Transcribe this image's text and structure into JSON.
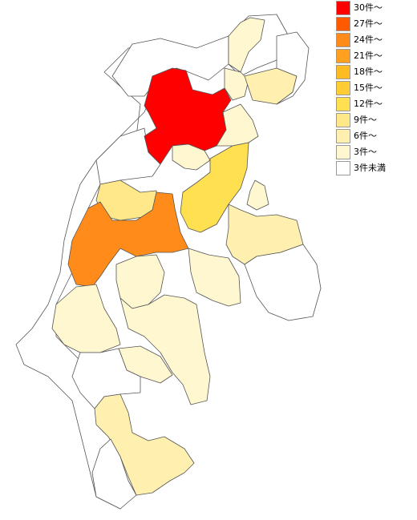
{
  "legend": {
    "items": [
      {
        "label": "30件～",
        "color": "#ff0000"
      },
      {
        "label": "27件～",
        "color": "#ff5a00"
      },
      {
        "label": "24件～",
        "color": "#ff8c1a"
      },
      {
        "label": "21件～",
        "color": "#ffa01e"
      },
      {
        "label": "18件～",
        "color": "#ffbb22"
      },
      {
        "label": "15件～",
        "color": "#ffcc33"
      },
      {
        "label": "12件～",
        "color": "#ffe050"
      },
      {
        "label": "9件～",
        "color": "#ffe88a"
      },
      {
        "label": "6件～",
        "color": "#fff0b0"
      },
      {
        "label": "3件～",
        "color": "#fff7d0"
      },
      {
        "label": "3件未満",
        "color": "#ffffff"
      }
    ]
  },
  "map": {
    "regions": [
      {
        "name": "north-east-1",
        "level": "3件～"
      },
      {
        "name": "north-east-2",
        "level": "6件～"
      },
      {
        "name": "north-east-3",
        "level": "3件～"
      },
      {
        "name": "north-central-top",
        "level": "3件未満"
      },
      {
        "name": "north-west-top",
        "level": "3件未満"
      },
      {
        "name": "nagano-city",
        "level": "30件～"
      },
      {
        "name": "east-mid-1",
        "level": "3件～"
      },
      {
        "name": "east-yellow",
        "level": "12件～"
      },
      {
        "name": "center-small-1",
        "level": "3件～"
      },
      {
        "name": "center-yellow",
        "level": "9件～"
      },
      {
        "name": "west-mid",
        "level": "3件～"
      },
      {
        "name": "matsumoto",
        "level": "24件～"
      },
      {
        "name": "saku",
        "level": "6件～"
      },
      {
        "name": "east-small",
        "level": "3件～"
      },
      {
        "name": "suwa-area",
        "level": "3件～"
      },
      {
        "name": "kiso-west",
        "level": "3件～"
      },
      {
        "name": "ina-1",
        "level": "3件～"
      },
      {
        "name": "ina-2",
        "level": "3件～"
      },
      {
        "name": "ina-3",
        "level": "3件～"
      },
      {
        "name": "iida",
        "level": "6件～"
      },
      {
        "name": "west-edge",
        "level": "3件未満"
      },
      {
        "name": "south-west",
        "level": "3件未満"
      },
      {
        "name": "south-tip",
        "level": "3件未満"
      },
      {
        "name": "east-edge",
        "level": "3件未満"
      },
      {
        "name": "north-west-mid",
        "level": "3件未満"
      },
      {
        "name": "south-east",
        "level": "3件未満"
      }
    ]
  }
}
